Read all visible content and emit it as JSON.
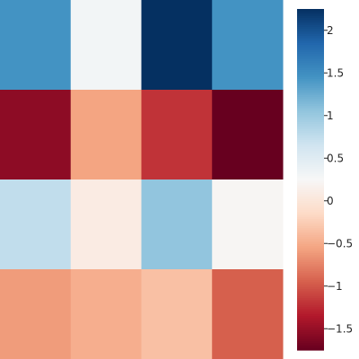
{
  "chart_data": {
    "type": "heatmap",
    "title": "",
    "xlabel": "",
    "ylabel": "",
    "colormap": "RdBu",
    "vmin": -1.75,
    "vmax": 2.25,
    "rows": 4,
    "cols": 4,
    "values": [
      [
        1.45,
        0.3,
        2.25,
        1.45
      ],
      [
        -1.55,
        -0.55,
        -1.2,
        -1.75
      ],
      [
        0.75,
        0.08,
        1.05,
        0.22
      ],
      [
        -0.6,
        -0.48,
        -0.35,
        -0.95
      ]
    ],
    "colorbar": {
      "ticks": [
        2,
        1.5,
        1,
        0.5,
        0,
        -0.5,
        -1,
        -1.5
      ],
      "tick_labels": [
        "2",
        "1.5",
        "1",
        "0.5",
        "0",
        "−0.5",
        "−1",
        "−1.5"
      ]
    }
  }
}
